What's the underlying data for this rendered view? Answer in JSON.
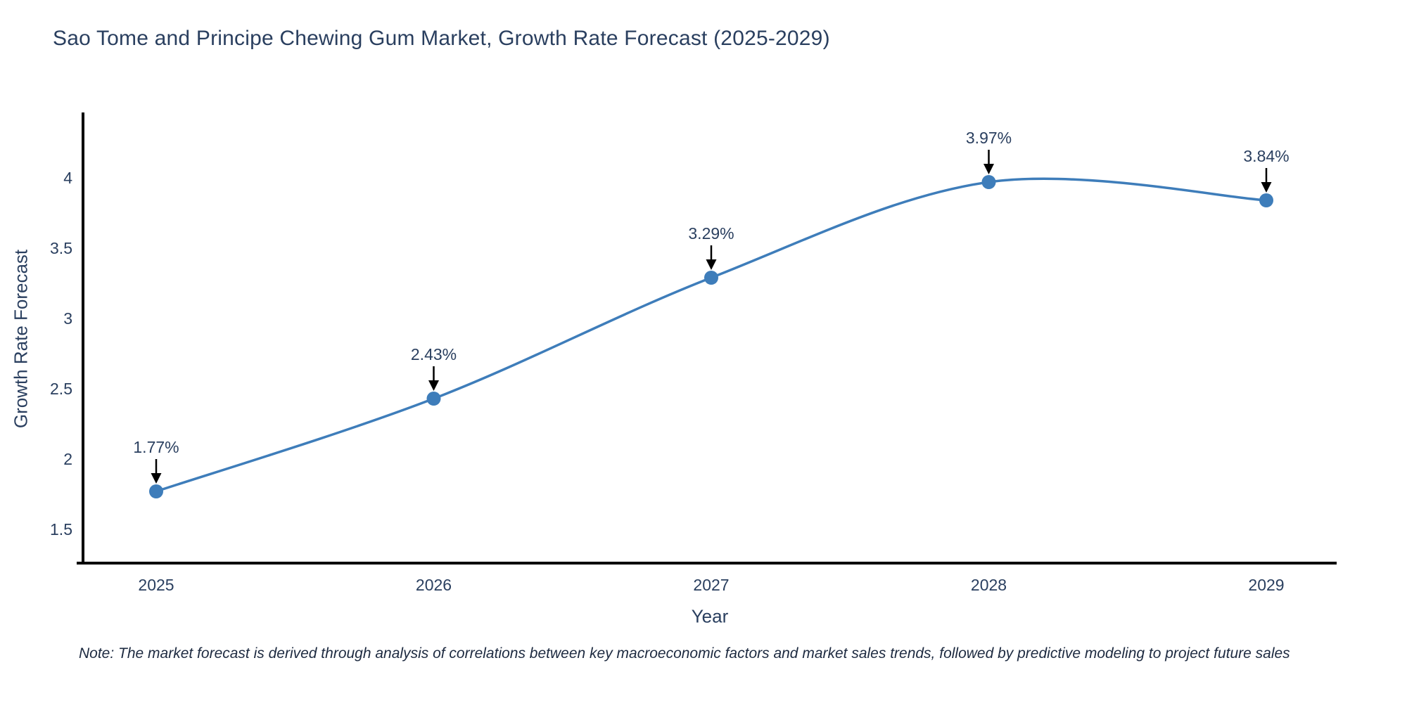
{
  "chart_data": {
    "type": "line",
    "title": "Sao Tome and Principe Chewing Gum Market, Growth Rate Forecast (2025-2029)",
    "xlabel": "Year",
    "ylabel": "Growth Rate Forecast",
    "x": [
      2025,
      2026,
      2027,
      2028,
      2029
    ],
    "values": [
      1.77,
      2.43,
      3.29,
      3.97,
      3.84
    ],
    "point_labels": [
      "1.77%",
      "2.43%",
      "3.29%",
      "3.97%",
      "3.84%"
    ],
    "yticks": [
      1.5,
      2,
      2.5,
      3,
      3.5,
      4
    ],
    "ylim": [
      1.25,
      4.45
    ],
    "grid": false,
    "legend": "none",
    "curve": "spline",
    "line_color": "#3E7DBA",
    "marker_color": "#3E7DBA",
    "axis_color": "#000000",
    "text_color": "#2a3f5f",
    "annotation_arrow_color": "#000000",
    "note": "Note: The market forecast is derived through analysis of correlations between key macroeconomic factors and market sales trends, followed by predictive modeling to project future sales"
  }
}
